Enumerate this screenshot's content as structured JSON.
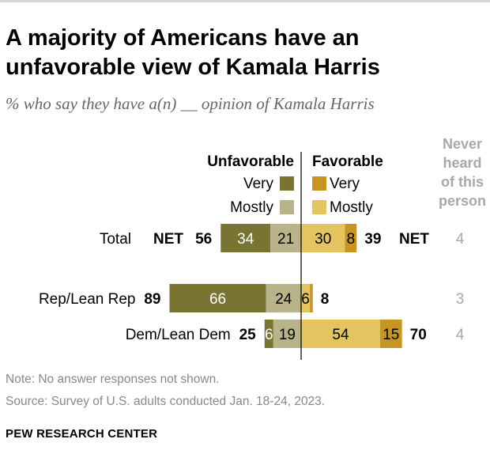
{
  "title": "A majority of Americans have an unfavorable view of Kamala Harris",
  "subtitle": "% who say they have a(n) __ opinion of Kamala Harris",
  "note": "Note: No answer responses not shown.",
  "source": "Source: Survey of U.S. adults conducted Jan. 18-24, 2023.",
  "organization": "PEW RESEARCH CENTER",
  "chart_data": {
    "type": "bar",
    "orientation": "horizontal-diverging",
    "headers": {
      "unfavorable": "Unfavorable",
      "favorable": "Favorable",
      "never_heard": [
        "Never",
        "heard",
        "of this",
        "person"
      ]
    },
    "legend": {
      "unfav_very": "Very",
      "unfav_mostly": "Mostly",
      "fav_very": "Very",
      "fav_mostly": "Mostly"
    },
    "net_label": "NET",
    "categories": [
      "Total",
      "Rep/Lean Rep",
      "Dem/Lean Dem"
    ],
    "series": [
      {
        "name": "Unfavorable - Very",
        "values": [
          34,
          66,
          6
        ]
      },
      {
        "name": "Unfavorable - Mostly",
        "values": [
          21,
          24,
          19
        ]
      },
      {
        "name": "Favorable - Mostly",
        "values": [
          30,
          6,
          54
        ]
      },
      {
        "name": "Favorable - Very",
        "values": [
          8,
          2,
          15
        ]
      }
    ],
    "net_unfavorable": [
      56,
      89,
      25
    ],
    "net_favorable": [
      39,
      8,
      70
    ],
    "never_heard": [
      4,
      3,
      4
    ],
    "colors": {
      "unfav_very": "#7a7433",
      "unfav_mostly": "#b9b38a",
      "fav_mostly": "#e3c45e",
      "fav_very": "#c79621"
    }
  }
}
